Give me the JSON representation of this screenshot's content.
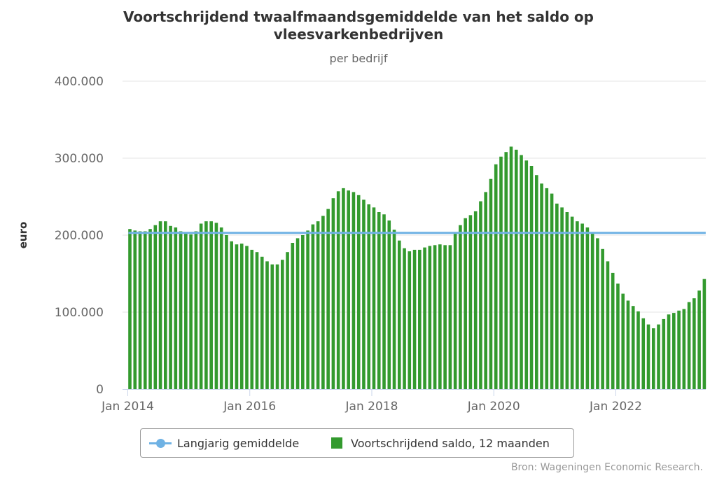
{
  "chart_data": {
    "type": "bar",
    "title": "Voortschrijdend twaalfmaandsgemiddelde van het saldo op vleesvarkenbedrijven",
    "subtitle": "per bedrijf",
    "ylabel": "euro",
    "ylim": [
      0,
      400000
    ],
    "yticks": [
      "0",
      "100.000",
      "200.000",
      "300.000",
      "400.000"
    ],
    "ytick_values": [
      0,
      100000,
      200000,
      300000,
      400000
    ],
    "xticks": [
      {
        "label": "Jan 2014",
        "index": 0
      },
      {
        "label": "Jan 2016",
        "index": 24
      },
      {
        "label": "Jan 2018",
        "index": 48
      },
      {
        "label": "Jan 2020",
        "index": 72
      },
      {
        "label": "Jan 2022",
        "index": 96
      }
    ],
    "start": "Jan 2014",
    "end": "Jun 2023",
    "grid": true,
    "legend_position": "bottom-center",
    "series": [
      {
        "name": "Voortschrijdend saldo, 12 maanden",
        "type": "bar",
        "color": "#339a2e",
        "values": [
          208000,
          206000,
          205000,
          205000,
          208000,
          213000,
          218000,
          218000,
          212000,
          210000,
          205000,
          203000,
          201000,
          205000,
          215000,
          218000,
          218000,
          216000,
          210000,
          200000,
          192000,
          188000,
          189000,
          186000,
          181000,
          178000,
          172000,
          166000,
          162000,
          162000,
          168000,
          178000,
          190000,
          196000,
          200000,
          206000,
          214000,
          218000,
          225000,
          234000,
          248000,
          257000,
          261000,
          258000,
          256000,
          252000,
          246000,
          240000,
          236000,
          230000,
          227000,
          219000,
          207000,
          193000,
          183000,
          179000,
          181000,
          181000,
          184000,
          186000,
          187000,
          188000,
          187000,
          187000,
          202000,
          213000,
          222000,
          226000,
          231000,
          244000,
          256000,
          273000,
          292000,
          302000,
          308000,
          315000,
          311000,
          304000,
          297000,
          290000,
          278000,
          267000,
          261000,
          254000,
          241000,
          236000,
          230000,
          224000,
          218000,
          215000,
          210000,
          203000,
          196000,
          182000,
          166000,
          151000,
          137000,
          124000,
          115000,
          108000,
          101000,
          92000,
          84000,
          79000,
          84000,
          91000,
          97000,
          99000,
          102000,
          104000,
          113000,
          118000,
          128000,
          143000
        ]
      },
      {
        "name": "Langjarig gemiddelde",
        "type": "line",
        "color": "#6fb2e4",
        "value": 203000
      }
    ]
  },
  "credits": "Bron: Wageningen Economic Research."
}
